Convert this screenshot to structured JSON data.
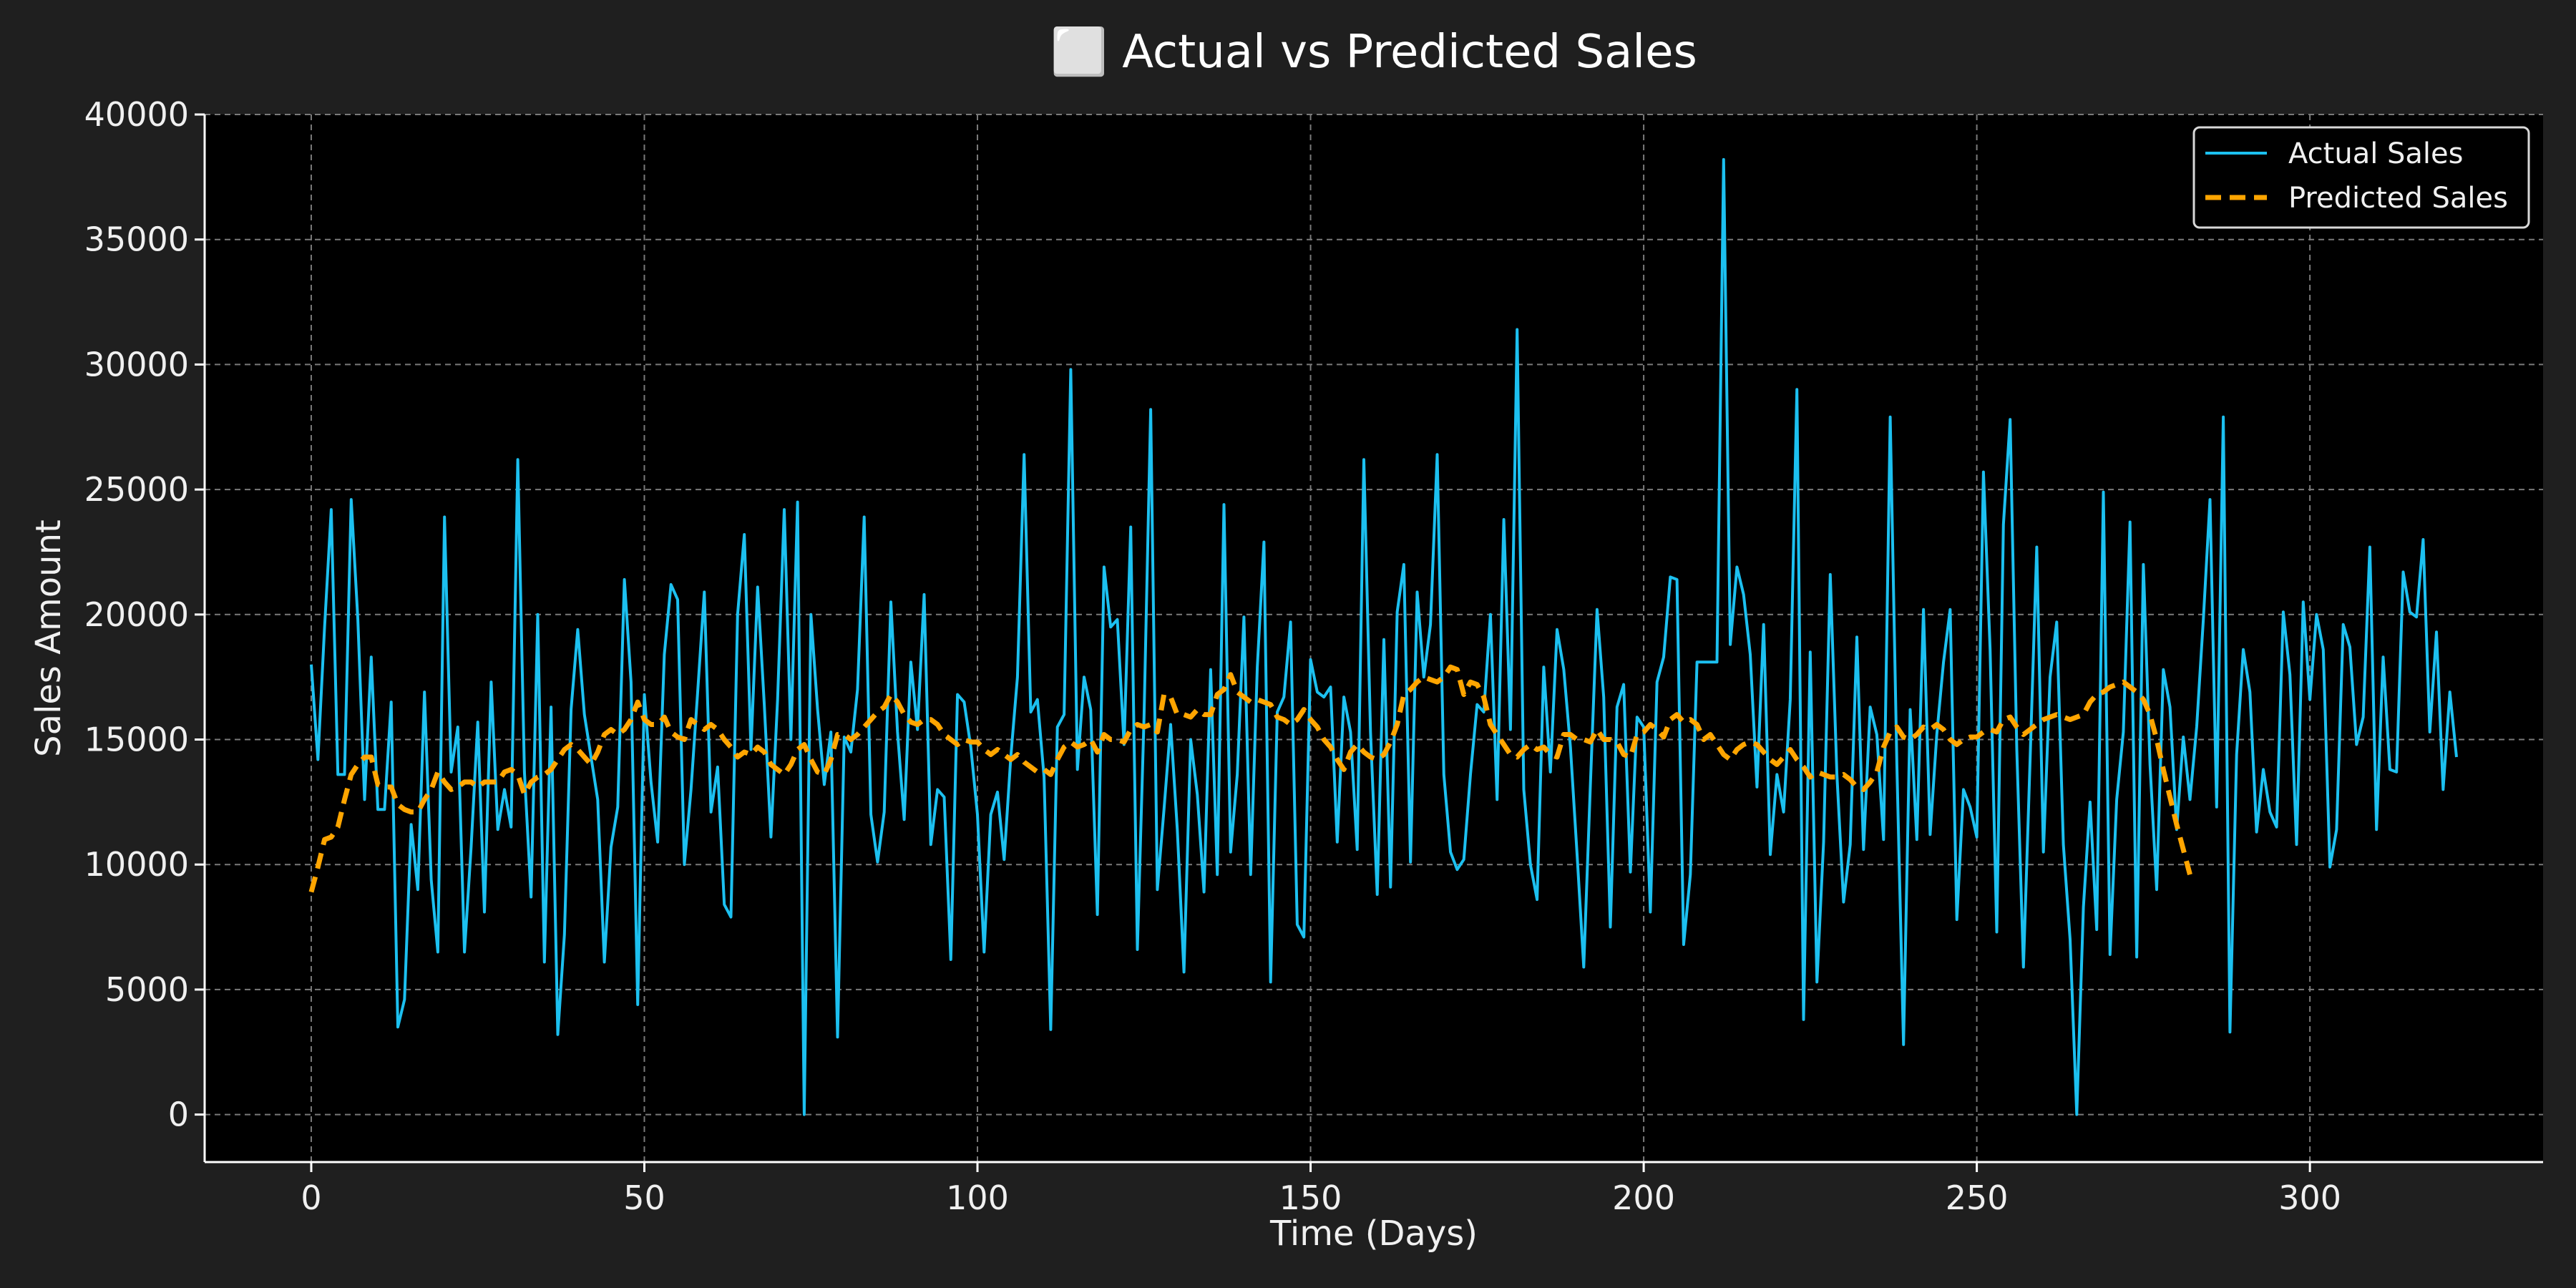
{
  "chart_data": {
    "type": "line",
    "title": "⬜ Actual vs Predicted Sales",
    "xlabel": "Time (Days)",
    "ylabel": "Sales Amount",
    "xlim": [
      -16,
      335
    ],
    "ylim": [
      -1900,
      40000
    ],
    "xticks": [
      0,
      50,
      100,
      150,
      200,
      250,
      300
    ],
    "yticks": [
      0,
      5000,
      10000,
      15000,
      20000,
      25000,
      30000,
      35000,
      40000
    ],
    "grid": true,
    "legend_position": "top-right",
    "colors": {
      "background": "#000000",
      "figure": "#1f1f1f",
      "actual": "#1cc0f0",
      "predicted": "#ffa500",
      "grid": "#7a7a7a"
    },
    "x_start": 0,
    "series": [
      {
        "name": "Actual Sales",
        "style": "solid",
        "values": [
          18000,
          14200,
          19500,
          24200,
          13600,
          13600,
          24600,
          19800,
          12600,
          18300,
          12200,
          12200,
          16500,
          3500,
          4600,
          11600,
          9000,
          16900,
          9400,
          6500,
          23900,
          13700,
          15500,
          6500,
          10700,
          15700,
          8100,
          17300,
          11400,
          13000,
          11500,
          26200,
          13700,
          8700,
          20000,
          6100,
          16300,
          3200,
          7200,
          16200,
          19400,
          16000,
          14300,
          12600,
          6100,
          10700,
          12300,
          21400,
          17300,
          4400,
          16800,
          13300,
          10900,
          18400,
          21200,
          20600,
          10000,
          13000,
          16900,
          20900,
          12100,
          13900,
          8400,
          7900,
          20000,
          23200,
          14600,
          21100,
          16400,
          11100,
          16600,
          24200,
          15000,
          24500,
          0,
          20000,
          16200,
          13200,
          15300,
          3100,
          15100,
          14500,
          17000,
          23900,
          12000,
          10100,
          12100,
          20500,
          15300,
          11800,
          18100,
          15400,
          20800,
          10800,
          13000,
          12700,
          6200,
          16800,
          16500,
          14700,
          12000,
          6500,
          12000,
          12900,
          10200,
          14300,
          17500,
          26400,
          16100,
          16600,
          13500,
          3400,
          15500,
          16000,
          29800,
          13800,
          17500,
          16200,
          8000,
          21900,
          19500,
          19800,
          14800,
          23500,
          6600,
          15900,
          28200,
          9000,
          12200,
          15600,
          11400,
          5700,
          15000,
          12800,
          8900,
          17800,
          9600,
          24400,
          10500,
          13600,
          19900,
          9600,
          17900,
          22900,
          5300,
          16100,
          16700,
          19700,
          7600,
          7100,
          18200,
          16900,
          16700,
          17100,
          10900,
          16700,
          15300,
          10600,
          26200,
          15300,
          8800,
          19000,
          9100,
          20100,
          22000,
          10100,
          20900,
          17500,
          19600,
          26400,
          13600,
          10500,
          9800,
          10200,
          13600,
          16400,
          16100,
          20000,
          12600,
          23800,
          15400,
          31400,
          13000,
          10000,
          8600,
          17900,
          13700,
          19400,
          17800,
          14700,
          10400,
          5900,
          13200,
          20200,
          16700,
          7500,
          16300,
          17200,
          9700,
          15900,
          15500,
          8100,
          17300,
          18300,
          21500,
          21400,
          6800,
          9600,
          18100,
          18100,
          18100,
          18100,
          38200,
          18800,
          21900,
          20800,
          18400,
          13100,
          19600,
          10400,
          13600,
          12100,
          16600,
          29000,
          3800,
          18500,
          5300,
          10900,
          21600,
          13600,
          8500,
          10800,
          19100,
          10600,
          16300,
          15200,
          11000,
          27900,
          14000,
          2800,
          16200,
          11000,
          20200,
          11200,
          15200,
          18100,
          20200,
          7800,
          13000,
          12300,
          11100,
          25700,
          18600,
          7300,
          23600,
          27800,
          14600,
          5900,
          14200,
          22700,
          10500,
          17500,
          19700,
          10800,
          7000,
          0,
          8300,
          12500,
          7400,
          24900,
          6400,
          12600,
          15300,
          23700,
          6300,
          22000,
          14000,
          9000,
          17800,
          16300,
          11400,
          15100,
          12600,
          15500,
          19800,
          24600,
          12300,
          27900,
          3300,
          14400,
          18600,
          16900,
          11300,
          13800,
          12100,
          11500,
          20100,
          17600,
          10800,
          20500,
          16600,
          20000,
          18600,
          9900,
          11400,
          19600,
          18700,
          14800,
          15900,
          22700,
          11400,
          18300,
          13800,
          13700,
          21700,
          20100,
          19900,
          23000,
          15300,
          19300,
          13000,
          16900,
          14300
        ]
      },
      {
        "name": "Predicted Sales",
        "style": "dashed",
        "values": [
          8900,
          9900,
          11000,
          11100,
          11500,
          12600,
          13600,
          14000,
          14300,
          14300,
          13200,
          13100,
          13100,
          12400,
          12200,
          12100,
          12100,
          12600,
          13000,
          13700,
          13300,
          13000,
          13100,
          13300,
          13300,
          13100,
          13300,
          13300,
          13300,
          13700,
          13800,
          13600,
          12800,
          13300,
          13500,
          13600,
          13800,
          14200,
          14600,
          14800,
          14600,
          14300,
          14000,
          14500,
          15200,
          15400,
          15200,
          15400,
          15800,
          16500,
          15800,
          15600,
          15600,
          15900,
          15300,
          15100,
          15000,
          15800,
          15600,
          15400,
          15600,
          15400,
          15000,
          14700,
          14300,
          14500,
          14400,
          14700,
          14500,
          14000,
          13800,
          13600,
          14000,
          14600,
          14800,
          14200,
          13700,
          13600,
          14200,
          15200,
          15200,
          15000,
          15200,
          15500,
          15800,
          16100,
          16300,
          16800,
          16500,
          16000,
          15700,
          15600,
          15800,
          15800,
          15600,
          15200,
          15000,
          14800,
          15000,
          14900,
          14900,
          14600,
          14400,
          14600,
          14400,
          14200,
          14400,
          14100,
          13900,
          13700,
          13800,
          13600,
          14200,
          14700,
          14900,
          14700,
          14800,
          15000,
          14500,
          15200,
          15000,
          15000,
          14900,
          15400,
          15600,
          15500,
          15600,
          15300,
          16800,
          16700,
          16000,
          16000,
          15900,
          16200,
          16000,
          16000,
          16800,
          17000,
          17600,
          16900,
          16700,
          16500,
          16600,
          16500,
          16400,
          15900,
          15800,
          15600,
          15800,
          16200,
          15800,
          15500,
          15000,
          14700,
          14200,
          13800,
          14500,
          14800,
          14500,
          14300,
          14200,
          14400,
          14900,
          15600,
          16800,
          17000,
          17300,
          17500,
          17400,
          17300,
          17500,
          17900,
          17800,
          16800,
          17300,
          17200,
          16700,
          15600,
          15200,
          14800,
          14400,
          14300,
          14600,
          14800,
          14600,
          14700,
          14400,
          14300,
          15200,
          15200,
          15000,
          15000,
          14900,
          15400,
          15000,
          15000,
          14900,
          14400,
          14300,
          15200,
          15300,
          15600,
          15400,
          15100,
          15800,
          16000,
          15700,
          15800,
          15600,
          15000,
          15200,
          14800,
          14400,
          14200,
          14600,
          14800,
          14900,
          14800,
          14500,
          14200,
          14000,
          14300,
          14600,
          14200,
          13900,
          13500,
          13700,
          13600,
          13500,
          13500,
          13600,
          13400,
          13100,
          13000,
          13300,
          13700,
          14700,
          15300,
          15500,
          15100,
          15000,
          15200,
          15500,
          15400,
          15600,
          15400,
          15000,
          14800,
          15000,
          15100,
          15100,
          15300,
          15400,
          15300,
          15800,
          15900,
          15500,
          15200,
          15400,
          15600,
          15800,
          15900,
          16000,
          15900,
          15800,
          15900,
          16000,
          16500,
          16800,
          16900,
          17100,
          17200,
          17300,
          17100,
          16900,
          16600,
          16000,
          15000,
          13800,
          12700,
          11600,
          10600,
          9600
        ]
      }
    ]
  }
}
